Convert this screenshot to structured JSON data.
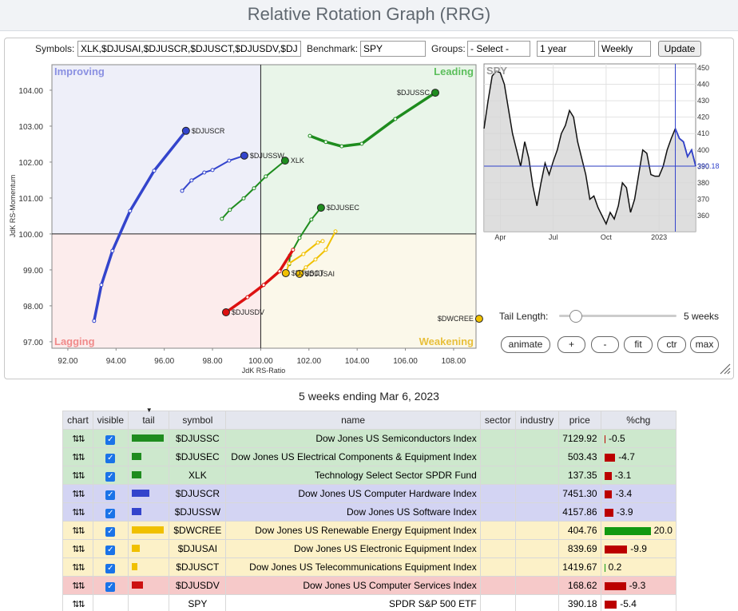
{
  "header": {
    "title": "Relative Rotation Graph (RRG)"
  },
  "controls": {
    "symbols_label": "Symbols:",
    "symbols_value": "XLK,$DJUSAI,$DJUSCR,$DJUSCT,$DJUSDV,$DJ",
    "benchmark_label": "Benchmark:",
    "benchmark_value": "SPY",
    "groups_label": "Groups:",
    "groups_value": "- Select -",
    "period": "1 year",
    "frequency": "Weekly",
    "update": "Update"
  },
  "rrg": {
    "type": "scatter",
    "xlabel": "JdK RS-Ratio",
    "ylabel": "JdK RS-Momentum",
    "quadrants": {
      "improving": "Improving",
      "leading": "Leading",
      "lagging": "Lagging",
      "weakening": "Weakening"
    },
    "xlim": [
      91.34,
      108.93
    ],
    "ylim": [
      96.82,
      104.71
    ],
    "xticks": [
      {
        "value": 92,
        "label": "92.00"
      },
      {
        "value": 94,
        "label": "94.00"
      },
      {
        "value": 96,
        "label": "96.00"
      },
      {
        "value": 98,
        "label": "98.00"
      },
      {
        "value": 100,
        "label": "100.00"
      },
      {
        "value": 102,
        "label": "102.00"
      },
      {
        "value": 104,
        "label": "104.00"
      },
      {
        "value": 106,
        "label": "106.00"
      },
      {
        "value": 108,
        "label": "108.00"
      }
    ],
    "yticks": [
      {
        "value": 97,
        "label": "97.00"
      },
      {
        "value": 98,
        "label": "98.00"
      },
      {
        "value": 99,
        "label": "99.00"
      },
      {
        "value": 100,
        "label": "100.00"
      },
      {
        "value": 101,
        "label": "101.00"
      },
      {
        "value": 102,
        "label": "102.00"
      },
      {
        "value": 103,
        "label": "103.00"
      },
      {
        "value": 104,
        "label": "104.00"
      }
    ],
    "series": [
      {
        "name": "$DJUSSC",
        "color": "#1e8c1e",
        "x": [
          102.04,
          102.7,
          103.36,
          104.19,
          105.58,
          107.24
        ],
        "y": [
          102.73,
          102.56,
          102.44,
          102.51,
          103.2,
          103.93
        ]
      },
      {
        "name": "$DJUSCR",
        "color": "#3344cc",
        "x": [
          93.09,
          93.39,
          93.85,
          94.58,
          95.58,
          96.9
        ],
        "y": [
          97.58,
          98.58,
          99.53,
          100.64,
          101.76,
          102.87
        ]
      },
      {
        "name": "$DJUSSW",
        "color": "#3344cc",
        "x": [
          96.74,
          97.13,
          97.66,
          98.0,
          98.69,
          99.32
        ],
        "y": [
          101.2,
          101.49,
          101.71,
          101.78,
          102.04,
          102.18
        ]
      },
      {
        "name": "XLK",
        "color": "#1e8c1e",
        "x": [
          98.39,
          98.72,
          99.29,
          99.72,
          100.21,
          101.01
        ],
        "y": [
          100.42,
          100.67,
          100.99,
          101.27,
          101.6,
          102.04
        ]
      },
      {
        "name": "$DJUSEC",
        "color": "#1e8c1e",
        "x": [
          101.18,
          101.21,
          101.61,
          102.1,
          102.5
        ],
        "y": [
          99.16,
          99.4,
          99.89,
          100.4,
          100.73
        ]
      },
      {
        "name": "$DJUSDV",
        "color": "#dd1111",
        "x": [
          101.34,
          100.78,
          100.12,
          99.45,
          98.56
        ],
        "y": [
          99.56,
          98.96,
          98.58,
          98.24,
          97.82
        ]
      },
      {
        "name": "$DJUSAI",
        "color": "#f0c000",
        "x": [
          103.1,
          102.7,
          102.27,
          101.87,
          101.61
        ],
        "y": [
          100.07,
          99.56,
          99.29,
          99.07,
          98.89
        ]
      },
      {
        "name": "$DJUSCT",
        "color": "#f0c000",
        "x": [
          102.57,
          102.37,
          101.77,
          101.18,
          101.04
        ],
        "y": [
          99.8,
          99.76,
          99.44,
          99.18,
          98.91
        ]
      },
      {
        "name": "$DWCREE",
        "color": "#f0c000",
        "x": [
          109.06
        ],
        "y": [
          97.64
        ]
      }
    ]
  },
  "spy_chart": {
    "type": "line",
    "title": "SPY",
    "color": "#111111",
    "tail_color": "#3344cc",
    "categories": [
      null,
      null,
      null,
      null,
      "Apr",
      null,
      null,
      null,
      null,
      null,
      null,
      null,
      null,
      null,
      null,
      null,
      null,
      "Jul",
      null,
      null,
      null,
      null,
      null,
      null,
      null,
      null,
      null,
      null,
      null,
      null,
      "Oct",
      null,
      null,
      null,
      null,
      null,
      null,
      null,
      null,
      null,
      null,
      null,
      null,
      "2023",
      null,
      null,
      null,
      null,
      null,
      null,
      null,
      null,
      null
    ],
    "values": [
      413,
      430,
      445,
      448,
      447,
      440,
      425,
      410,
      400,
      390,
      405,
      395,
      378,
      366,
      380,
      392,
      385,
      393,
      400,
      410,
      415,
      424,
      420,
      405,
      395,
      385,
      370,
      372,
      365,
      360,
      355,
      362,
      358,
      366,
      380,
      377,
      362,
      370,
      385,
      400,
      398,
      385,
      384,
      384,
      390,
      400,
      407,
      413,
      407,
      405,
      396,
      400,
      390.18
    ],
    "ylim": [
      350.3,
      452.4
    ],
    "yticks": [
      360,
      370,
      380,
      390,
      400,
      410,
      420,
      430,
      440,
      450
    ],
    "grid": true
  },
  "tail": {
    "label": "Tail Length:",
    "value": "5 weeks"
  },
  "buttons": [
    "animate",
    "+",
    "-",
    "fit",
    "ctr",
    "max"
  ],
  "caption": "5 weeks ending Mar 6, 2023",
  "table": {
    "columns": [
      "chart",
      "visible",
      "tail",
      "symbol",
      "name",
      "sector",
      "industry",
      "price",
      "%chg"
    ],
    "rows": [
      [
        "$DJUSSC",
        "Dow Jones US Semiconductors Index",
        "7129.92",
        "-0.5"
      ],
      [
        "$DJUSEC",
        "Dow Jones US Electrical Components & Equipment Index",
        "503.43",
        "-4.7"
      ],
      [
        "XLK",
        "Technology Select Sector SPDR Fund",
        "137.35",
        "-3.1"
      ],
      [
        "$DJUSCR",
        "Dow Jones US Computer Hardware Index",
        "7451.30",
        "-3.4"
      ],
      [
        "$DJUSSW",
        "Dow Jones US Software Index",
        "4157.86",
        "-3.9"
      ],
      [
        "$DWCREE",
        "Dow Jones US Renewable Energy Equipment Index",
        "404.76",
        "20.0"
      ],
      [
        "$DJUSAI",
        "Dow Jones US Electronic Equipment Index",
        "839.69",
        "-9.9"
      ],
      [
        "$DJUSCT",
        "Dow Jones US Telecommunications Equipment Index",
        "1419.67",
        "0.2"
      ],
      [
        "$DJUSDV",
        "Dow Jones US Computer Services Index",
        "168.62",
        "-9.3"
      ],
      [
        "SPY",
        "SPDR S&P 500 ETF",
        "390.18",
        "-5.4"
      ]
    ]
  }
}
